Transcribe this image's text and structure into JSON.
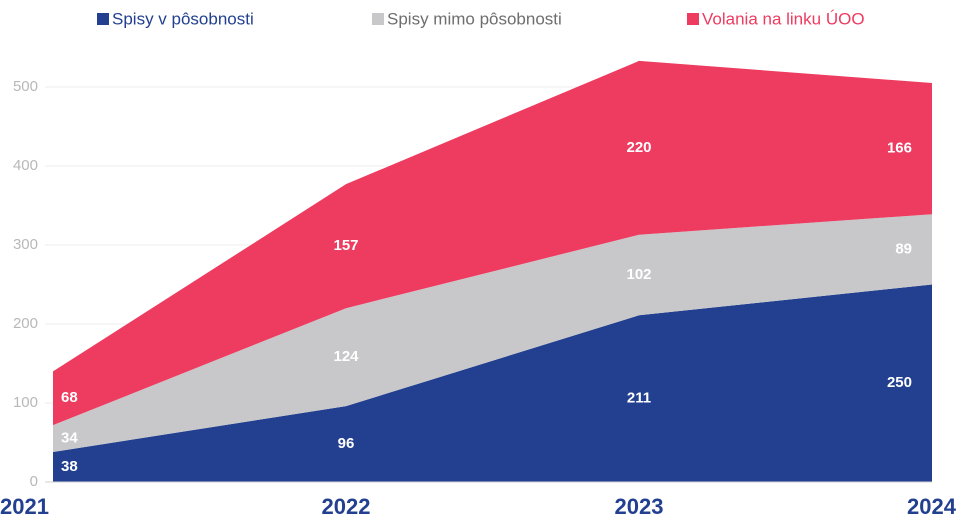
{
  "chart_data": {
    "type": "stacked_area",
    "categories": [
      "2021",
      "2022",
      "2023",
      "2024"
    ],
    "series": [
      {
        "name": "Spisy v pôsobnosti",
        "color": "#22408f",
        "values": [
          38,
          96,
          211,
          250
        ]
      },
      {
        "name": "Spisy mimo pôsobnosti",
        "color": "#c8c8ca",
        "values": [
          34,
          124,
          102,
          89
        ]
      },
      {
        "name": "Volania na linku ÚOO",
        "color": "#ee3b60",
        "values": [
          68,
          157,
          220,
          166
        ]
      }
    ],
    "ylim": [
      0,
      540
    ],
    "yticks": [
      0,
      100,
      200,
      300,
      400,
      500
    ],
    "grid": true,
    "legend": "top"
  }
}
